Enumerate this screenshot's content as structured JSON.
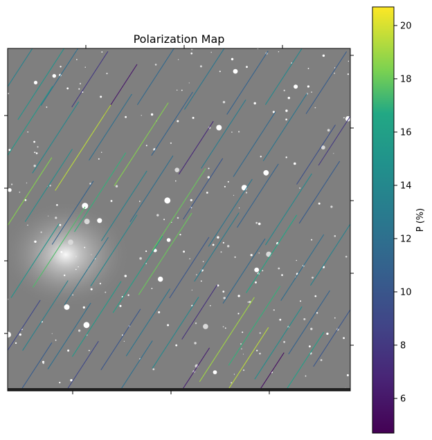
{
  "chart_data": {
    "type": "scatter",
    "title": "Polarization Map",
    "xlabel": "",
    "ylabel": "",
    "background": "greyscale star-field image",
    "colormap": "viridis",
    "colorbar": {
      "label": "P (%)",
      "range": [
        4.7,
        20.7
      ],
      "ticks": [
        6,
        8,
        10,
        12,
        14,
        16,
        18,
        20
      ],
      "tick_labels": [
        "6",
        "8",
        "10",
        "12",
        "14",
        "16",
        "18",
        "20"
      ],
      "placement": "right"
    },
    "vector_angle_deg": 57,
    "series": [
      {
        "vectors": [
          {
            "x": 0.04,
            "y": 0.95,
            "p": 13.5
          },
          {
            "x": 0.1,
            "y": 0.9,
            "p": 15.0
          },
          {
            "x": 0.16,
            "y": 0.93,
            "p": 12.0
          },
          {
            "x": 0.24,
            "y": 0.91,
            "p": 8.0
          },
          {
            "x": 0.33,
            "y": 0.88,
            "p": 6.0
          },
          {
            "x": 0.44,
            "y": 0.93,
            "p": 11.5
          },
          {
            "x": 0.58,
            "y": 0.92,
            "p": 12.5
          },
          {
            "x": 0.7,
            "y": 0.9,
            "p": 11.0
          },
          {
            "x": 0.82,
            "y": 0.94,
            "p": 14.0
          },
          {
            "x": 0.93,
            "y": 0.9,
            "p": 10.5
          },
          {
            "x": 0.06,
            "y": 0.78,
            "p": 15.5
          },
          {
            "x": 0.14,
            "y": 0.74,
            "p": 14.0
          },
          {
            "x": 0.22,
            "y": 0.71,
            "p": 19.5
          },
          {
            "x": 0.3,
            "y": 0.77,
            "p": 12.0
          },
          {
            "x": 0.39,
            "y": 0.72,
            "p": 18.5
          },
          {
            "x": 0.48,
            "y": 0.78,
            "p": 11.0
          },
          {
            "x": 0.55,
            "y": 0.71,
            "p": 7.0
          },
          {
            "x": 0.63,
            "y": 0.75,
            "p": 13.0
          },
          {
            "x": 0.72,
            "y": 0.72,
            "p": 11.5
          },
          {
            "x": 0.81,
            "y": 0.77,
            "p": 12.5
          },
          {
            "x": 0.9,
            "y": 0.69,
            "p": 9.5
          },
          {
            "x": 0.96,
            "y": 0.74,
            "p": 8.0
          },
          {
            "x": 0.05,
            "y": 0.56,
            "p": 18.5
          },
          {
            "x": 0.12,
            "y": 0.6,
            "p": 14.5
          },
          {
            "x": 0.19,
            "y": 0.52,
            "p": 11.0
          },
          {
            "x": 0.27,
            "y": 0.58,
            "p": 17.0
          },
          {
            "x": 0.34,
            "y": 0.54,
            "p": 13.5
          },
          {
            "x": 0.42,
            "y": 0.59,
            "p": 12.0
          },
          {
            "x": 0.5,
            "y": 0.53,
            "p": 18.0
          },
          {
            "x": 0.57,
            "y": 0.59,
            "p": 10.0
          },
          {
            "x": 0.65,
            "y": 0.52,
            "p": 12.5
          },
          {
            "x": 0.73,
            "y": 0.57,
            "p": 11.0
          },
          {
            "x": 0.82,
            "y": 0.53,
            "p": 14.0
          },
          {
            "x": 0.91,
            "y": 0.58,
            "p": 10.5
          },
          {
            "x": 0.08,
            "y": 0.38,
            "p": 15.0
          },
          {
            "x": 0.15,
            "y": 0.42,
            "p": 17.5
          },
          {
            "x": 0.23,
            "y": 0.35,
            "p": 12.5
          },
          {
            "x": 0.31,
            "y": 0.41,
            "p": 14.0
          },
          {
            "x": 0.38,
            "y": 0.34,
            "p": 16.0
          },
          {
            "x": 0.46,
            "y": 0.4,
            "p": 18.0
          },
          {
            "x": 0.53,
            "y": 0.36,
            "p": 10.0
          },
          {
            "x": 0.61,
            "y": 0.42,
            "p": 13.0
          },
          {
            "x": 0.69,
            "y": 0.35,
            "p": 11.5
          },
          {
            "x": 0.77,
            "y": 0.4,
            "p": 16.5
          },
          {
            "x": 0.86,
            "y": 0.36,
            "p": 12.0
          },
          {
            "x": 0.95,
            "y": 0.41,
            "p": 13.5
          },
          {
            "x": 0.04,
            "y": 0.18,
            "p": 9.0
          },
          {
            "x": 0.11,
            "y": 0.22,
            "p": 13.5
          },
          {
            "x": 0.18,
            "y": 0.16,
            "p": 12.0
          },
          {
            "x": 0.26,
            "y": 0.21,
            "p": 15.5
          },
          {
            "x": 0.33,
            "y": 0.15,
            "p": 10.0
          },
          {
            "x": 0.41,
            "y": 0.2,
            "p": 12.5
          },
          {
            "x": 0.49,
            "y": 0.17,
            "p": 14.0
          },
          {
            "x": 0.56,
            "y": 0.23,
            "p": 7.5
          },
          {
            "x": 0.64,
            "y": 0.15,
            "p": 19.0
          },
          {
            "x": 0.72,
            "y": 0.19,
            "p": 17.0
          },
          {
            "x": 0.79,
            "y": 0.14,
            "p": 14.5
          },
          {
            "x": 0.88,
            "y": 0.2,
            "p": 11.0
          },
          {
            "x": 0.95,
            "y": 0.16,
            "p": 10.0
          },
          {
            "x": 0.07,
            "y": 0.05,
            "p": 10.5
          },
          {
            "x": 0.21,
            "y": 0.06,
            "p": 9.0
          },
          {
            "x": 0.36,
            "y": 0.05,
            "p": 12.0
          },
          {
            "x": 0.54,
            "y": 0.05,
            "p": 6.5
          },
          {
            "x": 0.68,
            "y": 0.06,
            "p": 19.5
          },
          {
            "x": 0.76,
            "y": 0.04,
            "p": 5.5
          },
          {
            "x": 0.85,
            "y": 0.06,
            "p": 16.0
          }
        ]
      }
    ],
    "xlim": [
      0,
      1
    ],
    "ylim": [
      0,
      1
    ],
    "grid": false
  }
}
